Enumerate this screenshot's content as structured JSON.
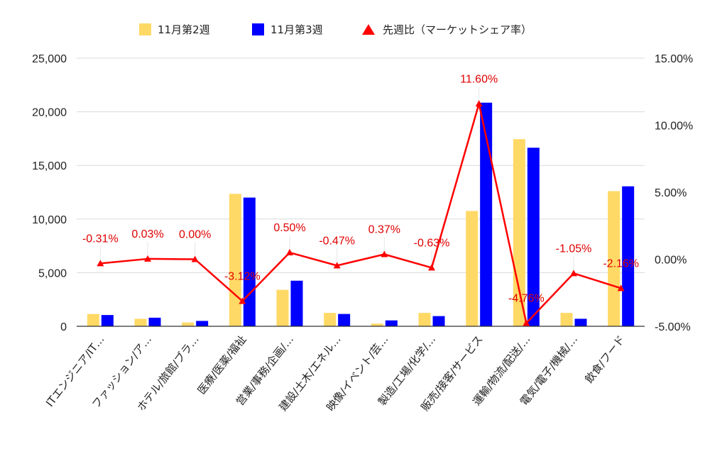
{
  "chart_data": {
    "type": "bar",
    "categories": [
      "ITエンジニア/IT…",
      "ファッション/ア…",
      "ホテル/旅館/ブラ…",
      "医療/医薬/福祉",
      "営業/事務/企画/…",
      "建設/土木/エネル…",
      "映像/イベント/芸…",
      "製造/工場/化学/…",
      "販売/接客/サービス",
      "運輸/物流/配送/…",
      "電気/電子/機械/…",
      "飲食/フード"
    ],
    "series": [
      {
        "name": "11月第2週",
        "type": "bar",
        "color": "#FFD966",
        "values": [
          1150,
          700,
          350,
          12350,
          3400,
          1250,
          250,
          1250,
          10750,
          17450,
          1250,
          12600
        ]
      },
      {
        "name": "11月第3週",
        "type": "bar",
        "color": "#0000FF",
        "values": [
          1050,
          800,
          500,
          12000,
          4250,
          1150,
          550,
          950,
          20850,
          16650,
          700,
          13050
        ]
      },
      {
        "name": "先週比（マーケットシェア率）",
        "type": "line",
        "color": "#FF0000",
        "axis": "right",
        "values": [
          -0.31,
          0.03,
          0.0,
          -3.12,
          0.5,
          -0.47,
          0.37,
          -0.63,
          11.6,
          -4.76,
          -1.05,
          -2.16
        ],
        "labels": [
          "-0.31%",
          "0.03%",
          "0.00%",
          "-3.12%",
          "0.50%",
          "-0.47%",
          "0.37%",
          "-0.63%",
          "11.60%",
          "-4.76%",
          "-1.05%",
          "-2.16%"
        ]
      }
    ],
    "y_left": {
      "min": 0,
      "max": 25000,
      "ticks": [
        "0",
        "5,000",
        "10,000",
        "15,000",
        "20,000",
        "25,000"
      ]
    },
    "y_right": {
      "min": -5,
      "max": 15,
      "ticks": [
        "-5.00%",
        "0.00%",
        "5.00%",
        "10.00%",
        "15.00%"
      ]
    },
    "legend_position": "top",
    "grid": "horizontal"
  }
}
